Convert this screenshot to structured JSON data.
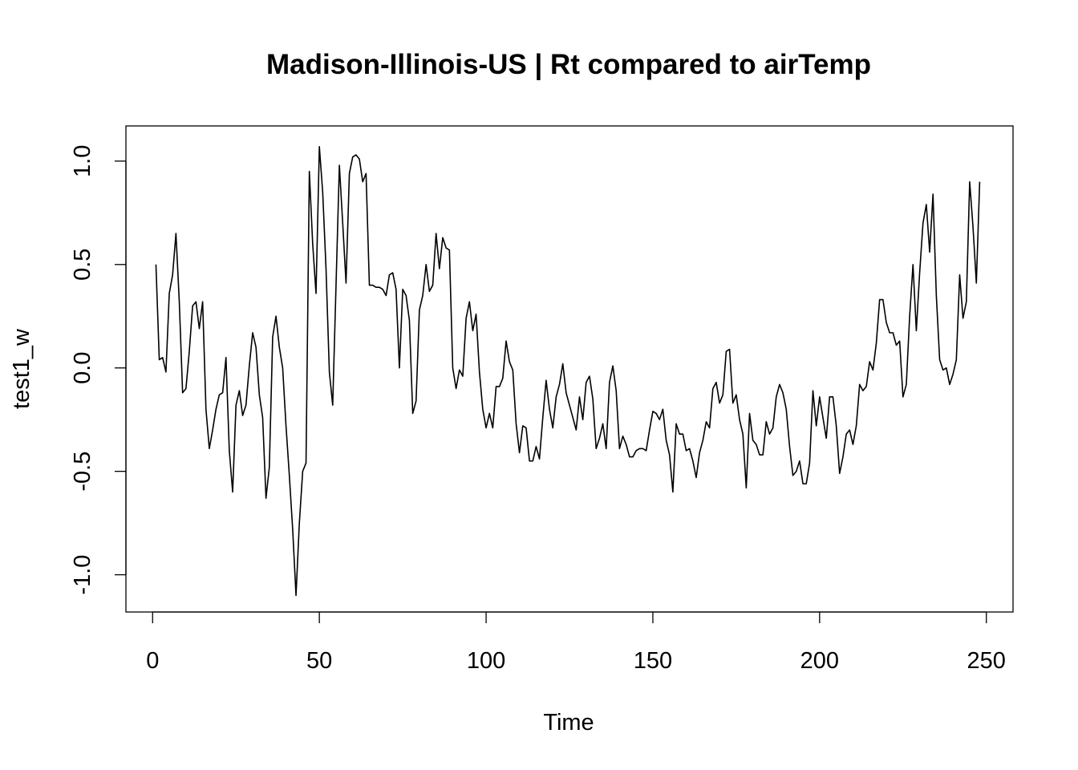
{
  "chart_data": {
    "type": "line",
    "title": "Madison-Illinois-US | Rt compared to airTemp",
    "xlabel": "Time",
    "ylabel": "test1_w",
    "xlim": [
      -8,
      258
    ],
    "ylim": [
      -1.18,
      1.17
    ],
    "xticks": [
      0,
      50,
      100,
      150,
      200,
      250
    ],
    "xtick_labels": [
      "0",
      "50",
      "100",
      "150",
      "200",
      "250"
    ],
    "yticks": [
      -1.0,
      -0.5,
      0.0,
      0.5,
      1.0
    ],
    "ytick_labels": [
      "-1.0",
      "-0.5",
      "0.0",
      "0.5",
      "1.0"
    ],
    "grid": false,
    "legend": "none",
    "series": [
      {
        "color": "#000000",
        "x": [
          1,
          2,
          3,
          4,
          5,
          6,
          7,
          8,
          9,
          10,
          11,
          12,
          13,
          14,
          15,
          16,
          17,
          18,
          19,
          20,
          21,
          22,
          23,
          24,
          25,
          26,
          27,
          28,
          29,
          30,
          31,
          32,
          33,
          34,
          35,
          36,
          37,
          38,
          39,
          40,
          41,
          42,
          43,
          44,
          45,
          46,
          47,
          48,
          49,
          50,
          51,
          52,
          53,
          54,
          55,
          56,
          57,
          58,
          59,
          60,
          61,
          62,
          63,
          64,
          65,
          66,
          67,
          68,
          69,
          70,
          71,
          72,
          73,
          74,
          75,
          76,
          77,
          78,
          79,
          80,
          81,
          82,
          83,
          84,
          85,
          86,
          87,
          88,
          89,
          90,
          91,
          92,
          93,
          94,
          95,
          96,
          97,
          98,
          99,
          100,
          101,
          102,
          103,
          104,
          105,
          106,
          107,
          108,
          109,
          110,
          111,
          112,
          113,
          114,
          115,
          116,
          117,
          118,
          119,
          120,
          121,
          122,
          123,
          124,
          125,
          126,
          127,
          128,
          129,
          130,
          131,
          132,
          133,
          134,
          135,
          136,
          137,
          138,
          139,
          140,
          141,
          142,
          143,
          144,
          145,
          146,
          147,
          148,
          149,
          150,
          151,
          152,
          153,
          154,
          155,
          156,
          157,
          158,
          159,
          160,
          161,
          162,
          163,
          164,
          165,
          166,
          167,
          168,
          169,
          170,
          171,
          172,
          173,
          174,
          175,
          176,
          177,
          178,
          179,
          180,
          181,
          182,
          183,
          184,
          185,
          186,
          187,
          188,
          189,
          190,
          191,
          192,
          193,
          194,
          195,
          196,
          197,
          198,
          199,
          200,
          201,
          202,
          203,
          204,
          205,
          206,
          207,
          208,
          209,
          210,
          211,
          212,
          213,
          214,
          215,
          216,
          217,
          218,
          219,
          220,
          221,
          222,
          223,
          224,
          225,
          226,
          227,
          228,
          229,
          230,
          231,
          232,
          233,
          234,
          235,
          236,
          237,
          238,
          239,
          240,
          241,
          242,
          243,
          244,
          245,
          246,
          247,
          248
        ],
        "y": [
          0.5,
          0.04,
          0.05,
          -0.02,
          0.36,
          0.45,
          0.65,
          0.32,
          -0.12,
          -0.1,
          0.08,
          0.3,
          0.32,
          0.19,
          0.32,
          -0.2,
          -0.39,
          -0.3,
          -0.2,
          -0.13,
          -0.12,
          0.05,
          -0.4,
          -0.6,
          -0.18,
          -0.11,
          -0.23,
          -0.18,
          0.01,
          0.17,
          0.1,
          -0.13,
          -0.24,
          -0.63,
          -0.48,
          0.15,
          0.25,
          0.1,
          0.0,
          -0.28,
          -0.52,
          -0.78,
          -1.1,
          -0.75,
          -0.5,
          -0.46,
          0.95,
          0.6,
          0.36,
          1.07,
          0.85,
          0.48,
          -0.02,
          -0.18,
          0.4,
          0.98,
          0.7,
          0.41,
          0.94,
          1.02,
          1.03,
          1.01,
          0.9,
          0.94,
          0.4,
          0.4,
          0.39,
          0.39,
          0.38,
          0.35,
          0.45,
          0.46,
          0.38,
          0.0,
          0.38,
          0.35,
          0.23,
          -0.22,
          -0.16,
          0.28,
          0.35,
          0.5,
          0.37,
          0.4,
          0.65,
          0.48,
          0.63,
          0.58,
          0.57,
          0.0,
          -0.1,
          -0.01,
          -0.04,
          0.24,
          0.32,
          0.18,
          0.26,
          -0.02,
          -0.2,
          -0.29,
          -0.22,
          -0.29,
          -0.09,
          -0.09,
          -0.05,
          0.13,
          0.03,
          -0.01,
          -0.27,
          -0.41,
          -0.28,
          -0.29,
          -0.45,
          -0.45,
          -0.38,
          -0.44,
          -0.24,
          -0.06,
          -0.2,
          -0.29,
          -0.14,
          -0.08,
          0.02,
          -0.12,
          -0.18,
          -0.24,
          -0.3,
          -0.14,
          -0.25,
          -0.07,
          -0.04,
          -0.15,
          -0.39,
          -0.34,
          -0.27,
          -0.39,
          -0.07,
          0.01,
          -0.11,
          -0.39,
          -0.33,
          -0.37,
          -0.43,
          -0.43,
          -0.4,
          -0.39,
          -0.39,
          -0.4,
          -0.3,
          -0.21,
          -0.22,
          -0.25,
          -0.2,
          -0.35,
          -0.42,
          -0.6,
          -0.27,
          -0.32,
          -0.32,
          -0.4,
          -0.39,
          -0.45,
          -0.53,
          -0.41,
          -0.35,
          -0.26,
          -0.29,
          -0.1,
          -0.07,
          -0.17,
          -0.13,
          0.08,
          0.09,
          -0.17,
          -0.13,
          -0.25,
          -0.32,
          -0.58,
          -0.22,
          -0.35,
          -0.37,
          -0.42,
          -0.42,
          -0.26,
          -0.32,
          -0.29,
          -0.14,
          -0.08,
          -0.12,
          -0.2,
          -0.38,
          -0.52,
          -0.5,
          -0.45,
          -0.56,
          -0.56,
          -0.46,
          -0.11,
          -0.28,
          -0.14,
          -0.24,
          -0.34,
          -0.14,
          -0.14,
          -0.28,
          -0.51,
          -0.43,
          -0.32,
          -0.3,
          -0.37,
          -0.28,
          -0.08,
          -0.11,
          -0.09,
          0.03,
          -0.01,
          0.12,
          0.33,
          0.33,
          0.22,
          0.17,
          0.17,
          0.11,
          0.13,
          -0.14,
          -0.08,
          0.25,
          0.5,
          0.18,
          0.46,
          0.7,
          0.79,
          0.56,
          0.84,
          0.35,
          0.04,
          -0.01,
          0.0,
          -0.08,
          -0.03,
          0.04,
          0.45,
          0.24,
          0.32,
          0.9,
          0.68,
          0.41,
          0.9
        ]
      }
    ]
  }
}
